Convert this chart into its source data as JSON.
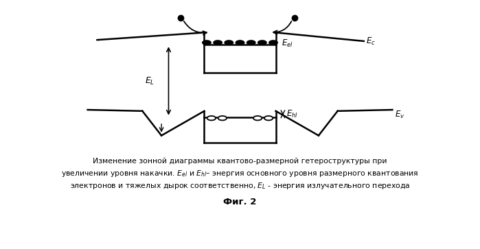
{
  "bg_color": "#ffffff",
  "line_color": "#000000",
  "fig_width": 6.99,
  "fig_height": 3.63,
  "fig_label": "Фиг. 2"
}
